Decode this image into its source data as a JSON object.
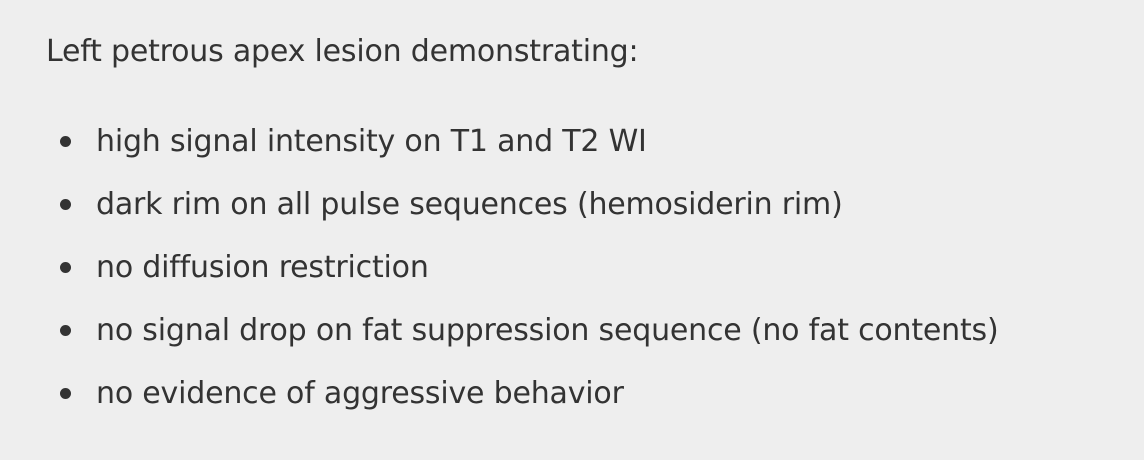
{
  "intro": "Left petrous apex lesion demonstrating:",
  "findings": [
    "high signal intensity on T1 and T2 WI",
    "dark rim on all pulse sequences (hemosiderin rim)",
    "no diffusion restriction",
    "no signal drop on fat suppression sequence (no fat contents)",
    "no evidence of aggressive behavior"
  ],
  "colors": {
    "background": "#eeeeee",
    "text": "#333333"
  }
}
